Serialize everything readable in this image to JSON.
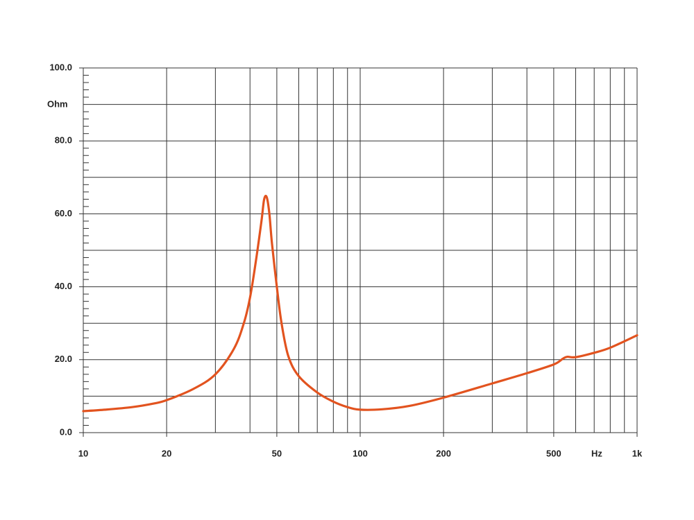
{
  "chart_data": {
    "type": "line",
    "xlog": true,
    "x_unit": "Hz",
    "y_unit": "Ohm",
    "xlim": [
      10,
      1000
    ],
    "ylim": [
      0,
      100
    ],
    "xticks": [
      10,
      20,
      50,
      100,
      200,
      500,
      {
        "value": 1000,
        "label": "1k"
      }
    ],
    "xgrid_minor": [
      30,
      40,
      60,
      70,
      80,
      90,
      300,
      400,
      600,
      700,
      800,
      900
    ],
    "yticks": [
      {
        "value": 0,
        "label": "0.0"
      },
      {
        "value": 20,
        "label": "20.0"
      },
      {
        "value": 40,
        "label": "40.0"
      },
      {
        "value": 60,
        "label": "60.0"
      },
      {
        "value": 80,
        "label": "80.0"
      },
      {
        "value": 100,
        "label": "100.0"
      }
    ],
    "ygrid_minor": [
      10,
      30,
      50,
      70,
      90
    ],
    "yminor_ticks": [
      2,
      4,
      6,
      8,
      12,
      14,
      16,
      18,
      22,
      24,
      26,
      28,
      32,
      34,
      36,
      38,
      42,
      44,
      46,
      48,
      52,
      54,
      56,
      58,
      62,
      64,
      66,
      68,
      72,
      74,
      76,
      78,
      82,
      84,
      86,
      88,
      92,
      94,
      96,
      98
    ],
    "grid": true,
    "series": [
      {
        "color": "#e2531f",
        "x": [
          10,
          12,
          15,
          18,
          20,
          25,
          30,
          35,
          38,
          40,
          42,
          44,
          45,
          46,
          47,
          48,
          50,
          52,
          55,
          60,
          70,
          80,
          90,
          100,
          120,
          150,
          200,
          300,
          400,
          500,
          540,
          560,
          600,
          700,
          800,
          1000
        ],
        "values": [
          5.9,
          6.3,
          7.0,
          8.0,
          8.9,
          12,
          16,
          23,
          30,
          37,
          47,
          58,
          64,
          64.5,
          60,
          52,
          40,
          30,
          21,
          15.5,
          11,
          8.5,
          7,
          6.3,
          6.4,
          7.3,
          9.6,
          13.5,
          16.3,
          18.7,
          20.3,
          20.8,
          20.7,
          21.9,
          23.3,
          26.7
        ]
      }
    ]
  }
}
